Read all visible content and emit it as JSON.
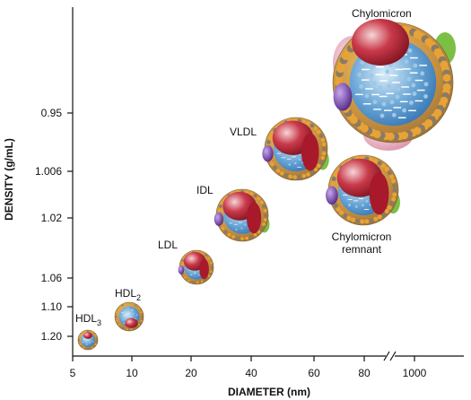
{
  "chart_data": {
    "type": "scatter",
    "xlabel": "DIAMETER (nm)",
    "ylabel": "DENSITY (g/mL)",
    "x_scale": "log",
    "x_ticks": [
      "5",
      "10",
      "20",
      "40",
      "60",
      "80",
      "1000"
    ],
    "y_ticks": [
      "0.95",
      "1.006",
      "1.02",
      "1.06",
      "1.10",
      "1.20"
    ],
    "axis_break": "between 80 and 1000",
    "points": [
      {
        "label_main": "HDL",
        "label_sub": "3",
        "diameter_nm": 6,
        "density": 1.2
      },
      {
        "label_main": "HDL",
        "label_sub": "2",
        "diameter_nm": 10,
        "density": 1.125
      },
      {
        "label_main": "LDL",
        "label_sub": "",
        "diameter_nm": 23,
        "density": 1.045
      },
      {
        "label_main": "IDL",
        "label_sub": "",
        "diameter_nm": 32,
        "density": 1.015
      },
      {
        "label_main": "VLDL",
        "label_sub": "",
        "diameter_nm": 50,
        "density": 0.99
      },
      {
        "label_main": "Chylomicron remnant",
        "label_sub": "",
        "diameter_nm": 80,
        "density": 0.985
      },
      {
        "label_main": "Chylomicron",
        "label_sub": "",
        "diameter_nm": 1000,
        "density": 0.93
      }
    ],
    "colors": {
      "shell": "#c99a45",
      "shell_dot": "#e7a337",
      "core": "#3b80c0",
      "core_dot": "#9fc8e6",
      "red_protein": "#a8192b",
      "purple_protein": "#6a3aa0",
      "green_protein": "#7cbf45",
      "pink_protein": "#e4a3b7"
    }
  }
}
